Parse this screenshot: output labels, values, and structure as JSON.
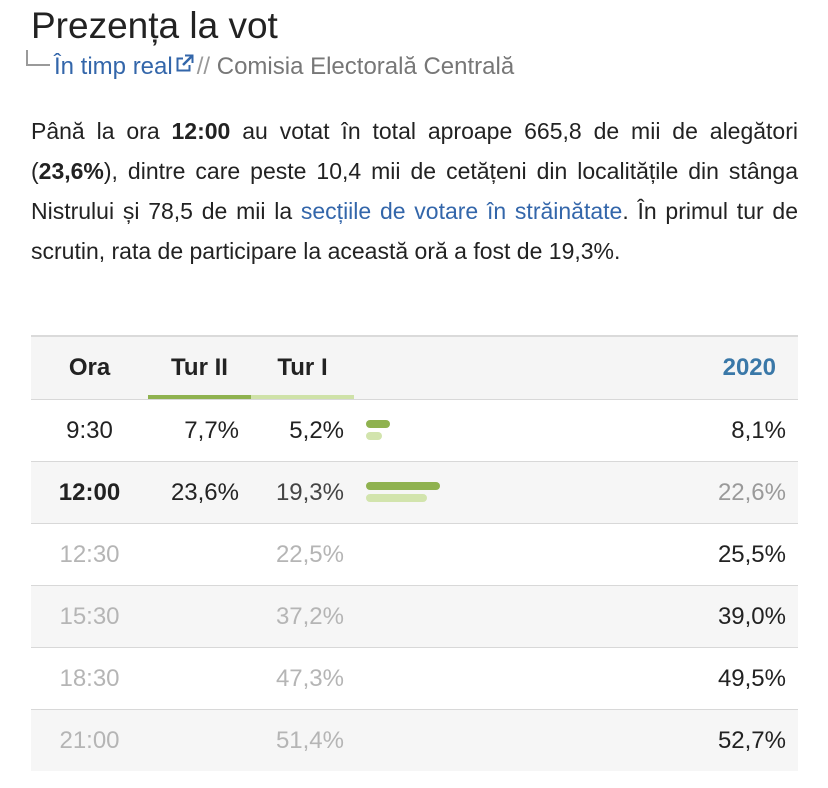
{
  "header": {
    "title": "Prezența la vot",
    "live_link": "În timp real",
    "separator": "//",
    "source": "Comisia Electorală Centrală"
  },
  "intro": {
    "p1": "Până la ora ",
    "time": "12:00",
    "p2": " au votat în total aproape 665,8 de mii de alegători (",
    "percent": "23,6%",
    "p3": "), dintre care peste 10,4 mii de cetățeni din localitățile din stânga Nistrului și 78,5 de mii la ",
    "link": "secțiile de votare în străinătate",
    "p4": ". În primul tur de scrutin, rata de participare la această oră a fost de 19,3%."
  },
  "table": {
    "headers": {
      "ora": "Ora",
      "tur2": "Tur II",
      "tur1": "Tur I",
      "y2020": "2020"
    },
    "bar_scale_max_percent": 35,
    "rows": [
      {
        "ora": "9:30",
        "tur2": "7,7%",
        "tur1": "5,2%",
        "y2020": "8,1%",
        "tur2_value": 7.7,
        "tur1_value": 5.2,
        "state": "past"
      },
      {
        "ora": "12:00",
        "tur2": "23,6%",
        "tur1": "19,3%",
        "y2020": "22,6%",
        "tur2_value": 23.6,
        "tur1_value": 19.3,
        "state": "highlight"
      },
      {
        "ora": "12:30",
        "tur2": "",
        "tur1": "22,5%",
        "y2020": "25,5%",
        "state": "future"
      },
      {
        "ora": "15:30",
        "tur2": "",
        "tur1": "37,2%",
        "y2020": "39,0%",
        "state": "future"
      },
      {
        "ora": "18:30",
        "tur2": "",
        "tur1": "47,3%",
        "y2020": "49,5%",
        "state": "future"
      },
      {
        "ora": "21:00",
        "tur2": "",
        "tur1": "51,4%",
        "y2020": "52,7%",
        "state": "future"
      }
    ]
  },
  "colors": {
    "tur2_bar": "#8fb24f",
    "tur1_bar": "#d2e4ad",
    "link": "#3366aa",
    "header_2020": "#3a78a8"
  },
  "icons": {
    "external_link": "external-link-icon",
    "branch": "subdirectory-arrow-icon"
  }
}
